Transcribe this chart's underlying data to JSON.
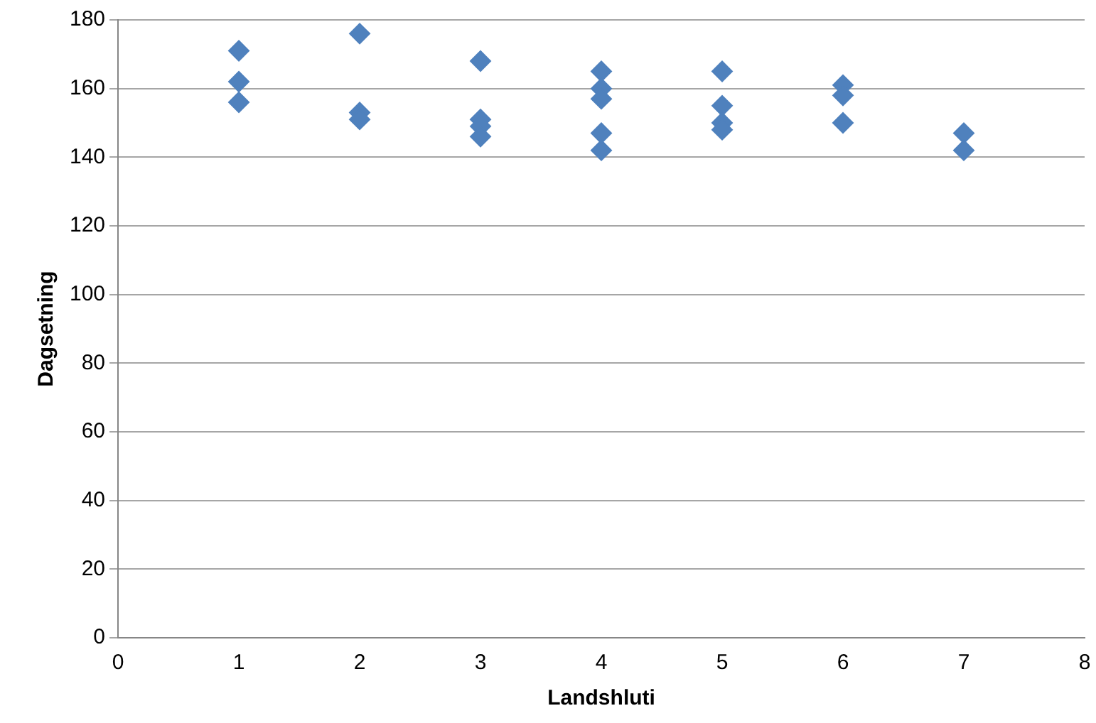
{
  "chart_data": {
    "type": "scatter",
    "xlabel": "Landshluti",
    "ylabel": "Dagsetning",
    "x": [
      1,
      1,
      1,
      2,
      2,
      2,
      3,
      3,
      3,
      3,
      4,
      4,
      4,
      4,
      4,
      5,
      5,
      5,
      5,
      6,
      6,
      6,
      7,
      7
    ],
    "series": [
      {
        "color": "#4f81bd",
        "values": [
          171,
          162,
          156,
          176,
          153,
          151,
          168,
          151,
          149,
          146,
          165,
          160,
          157,
          147,
          142,
          165,
          155,
          150,
          148,
          161,
          158,
          150,
          147,
          142
        ]
      }
    ],
    "xlim": [
      0,
      8
    ],
    "xticks": [
      0,
      1,
      2,
      3,
      4,
      5,
      6,
      7,
      8
    ],
    "ylim": [
      0,
      180
    ],
    "yticks": [
      0,
      20,
      40,
      60,
      80,
      100,
      120,
      140,
      160,
      180
    ],
    "grid": "y",
    "legend": false,
    "marker": "diamond"
  }
}
